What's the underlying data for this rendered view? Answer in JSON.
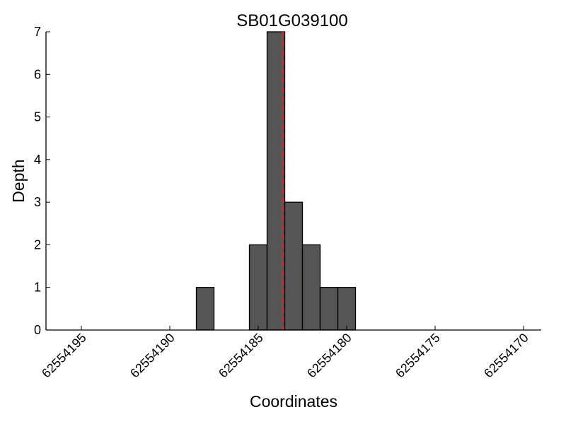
{
  "chart_data": {
    "type": "bar",
    "title": "SB01G039100",
    "xlabel": "Coordinates",
    "ylabel": "Depth",
    "x_axis_reversed": true,
    "xlim": [
      62554197,
      62554169
    ],
    "ylim": [
      0,
      7
    ],
    "x_ticks": [
      62554195,
      62554190,
      62554185,
      62554180,
      62554175,
      62554170
    ],
    "y_ticks": [
      0,
      1,
      2,
      3,
      4,
      5,
      6,
      7
    ],
    "bin_width": 1,
    "bins": [
      {
        "x": 62554188,
        "value": 1
      },
      {
        "x": 62554185,
        "value": 2
      },
      {
        "x": 62554184,
        "value": 7
      },
      {
        "x": 62554183,
        "value": 3
      },
      {
        "x": 62554182,
        "value": 2
      },
      {
        "x": 62554181,
        "value": 1
      },
      {
        "x": 62554180,
        "value": 1
      }
    ],
    "marker_line": {
      "x": 62554183.6,
      "color": "#d62728",
      "style": "dashed"
    },
    "bar_color": "#555555",
    "grid": false
  }
}
